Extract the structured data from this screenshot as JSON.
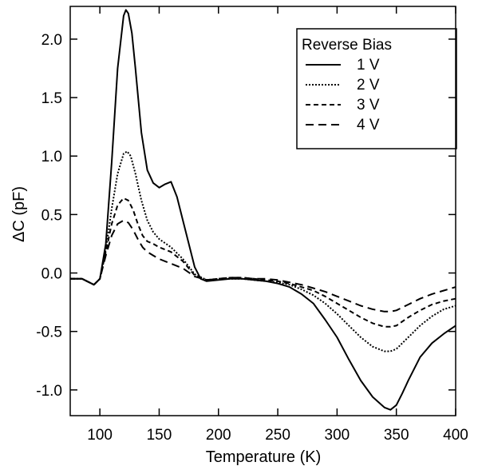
{
  "chart_data": {
    "type": "line",
    "title": "",
    "xlabel": "Temperature (K)",
    "ylabel": "ΔC (pF)",
    "xlim": [
      75,
      400
    ],
    "ylim": [
      -1.22,
      2.28
    ],
    "xticks": [
      100,
      150,
      200,
      250,
      300,
      350,
      400
    ],
    "yticks": [
      -1.0,
      -0.5,
      0.0,
      0.5,
      1.0,
      1.5,
      2.0
    ],
    "xtick_labels": [
      "100",
      "150",
      "200",
      "250",
      "300",
      "350",
      "400"
    ],
    "ytick_labels": [
      "-1.0",
      "-0.5",
      "0.0",
      "0.5",
      "1.0",
      "1.5",
      "2.0"
    ],
    "grid": false,
    "legend": {
      "title": "Reverse Bias",
      "position": "top-right"
    },
    "series": [
      {
        "name": "1 V",
        "dash": "solid",
        "x": [
          75,
          85,
          95,
          100,
          105,
          110,
          115,
          120,
          122,
          124,
          127,
          130,
          135,
          140,
          145,
          150,
          155,
          160,
          165,
          170,
          175,
          180,
          185,
          190,
          200,
          210,
          220,
          230,
          240,
          250,
          260,
          270,
          280,
          290,
          300,
          310,
          320,
          330,
          340,
          345,
          350,
          355,
          360,
          370,
          380,
          390,
          400
        ],
        "y": [
          -0.05,
          -0.05,
          -0.1,
          -0.05,
          0.25,
          0.95,
          1.75,
          2.2,
          2.25,
          2.22,
          2.05,
          1.75,
          1.2,
          0.88,
          0.77,
          0.73,
          0.76,
          0.78,
          0.65,
          0.45,
          0.25,
          0.05,
          -0.05,
          -0.07,
          -0.06,
          -0.05,
          -0.05,
          -0.06,
          -0.07,
          -0.09,
          -0.12,
          -0.18,
          -0.26,
          -0.4,
          -0.55,
          -0.74,
          -0.92,
          -1.06,
          -1.15,
          -1.17,
          -1.13,
          -1.03,
          -0.92,
          -0.72,
          -0.6,
          -0.52,
          -0.45
        ]
      },
      {
        "name": "2 V",
        "dash": "dot",
        "x": [
          75,
          85,
          95,
          100,
          105,
          110,
          115,
          120,
          123,
          126,
          130,
          135,
          140,
          145,
          150,
          160,
          170,
          180,
          190,
          200,
          210,
          220,
          230,
          240,
          250,
          260,
          270,
          280,
          290,
          300,
          310,
          320,
          330,
          340,
          345,
          350,
          360,
          370,
          380,
          390,
          400
        ],
        "y": [
          -0.05,
          -0.05,
          -0.1,
          -0.05,
          0.2,
          0.55,
          0.85,
          1.02,
          1.04,
          1.0,
          0.85,
          0.62,
          0.45,
          0.35,
          0.29,
          0.22,
          0.12,
          -0.01,
          -0.06,
          -0.05,
          -0.05,
          -0.05,
          -0.06,
          -0.07,
          -0.08,
          -0.1,
          -0.14,
          -0.19,
          -0.26,
          -0.35,
          -0.45,
          -0.55,
          -0.63,
          -0.67,
          -0.67,
          -0.65,
          -0.55,
          -0.45,
          -0.37,
          -0.31,
          -0.28
        ]
      },
      {
        "name": "3 V",
        "dash": "dash",
        "x": [
          75,
          85,
          95,
          100,
          105,
          110,
          115,
          120,
          124,
          128,
          132,
          136,
          140,
          145,
          150,
          160,
          170,
          180,
          190,
          200,
          210,
          220,
          230,
          240,
          250,
          260,
          270,
          280,
          290,
          300,
          310,
          320,
          330,
          340,
          345,
          350,
          360,
          370,
          380,
          390,
          400
        ],
        "y": [
          -0.05,
          -0.05,
          -0.1,
          -0.05,
          0.18,
          0.42,
          0.58,
          0.64,
          0.62,
          0.54,
          0.42,
          0.32,
          0.27,
          0.25,
          0.22,
          0.18,
          0.1,
          -0.02,
          -0.06,
          -0.05,
          -0.04,
          -0.04,
          -0.05,
          -0.06,
          -0.07,
          -0.09,
          -0.12,
          -0.15,
          -0.2,
          -0.26,
          -0.32,
          -0.38,
          -0.43,
          -0.46,
          -0.46,
          -0.45,
          -0.38,
          -0.32,
          -0.27,
          -0.24,
          -0.22
        ]
      },
      {
        "name": "4 V",
        "dash": "longdash",
        "x": [
          75,
          85,
          95,
          100,
          105,
          110,
          115,
          120,
          124,
          128,
          132,
          136,
          140,
          145,
          150,
          160,
          170,
          180,
          190,
          200,
          210,
          220,
          230,
          240,
          250,
          260,
          270,
          280,
          290,
          300,
          310,
          320,
          330,
          340,
          345,
          350,
          360,
          370,
          380,
          390,
          400
        ],
        "y": [
          -0.05,
          -0.05,
          -0.1,
          -0.05,
          0.15,
          0.32,
          0.42,
          0.45,
          0.43,
          0.37,
          0.29,
          0.22,
          0.18,
          0.15,
          0.12,
          0.08,
          0.04,
          -0.03,
          -0.06,
          -0.05,
          -0.04,
          -0.04,
          -0.05,
          -0.05,
          -0.06,
          -0.08,
          -0.1,
          -0.13,
          -0.16,
          -0.2,
          -0.24,
          -0.28,
          -0.31,
          -0.33,
          -0.33,
          -0.32,
          -0.27,
          -0.22,
          -0.18,
          -0.15,
          -0.12
        ]
      }
    ]
  }
}
